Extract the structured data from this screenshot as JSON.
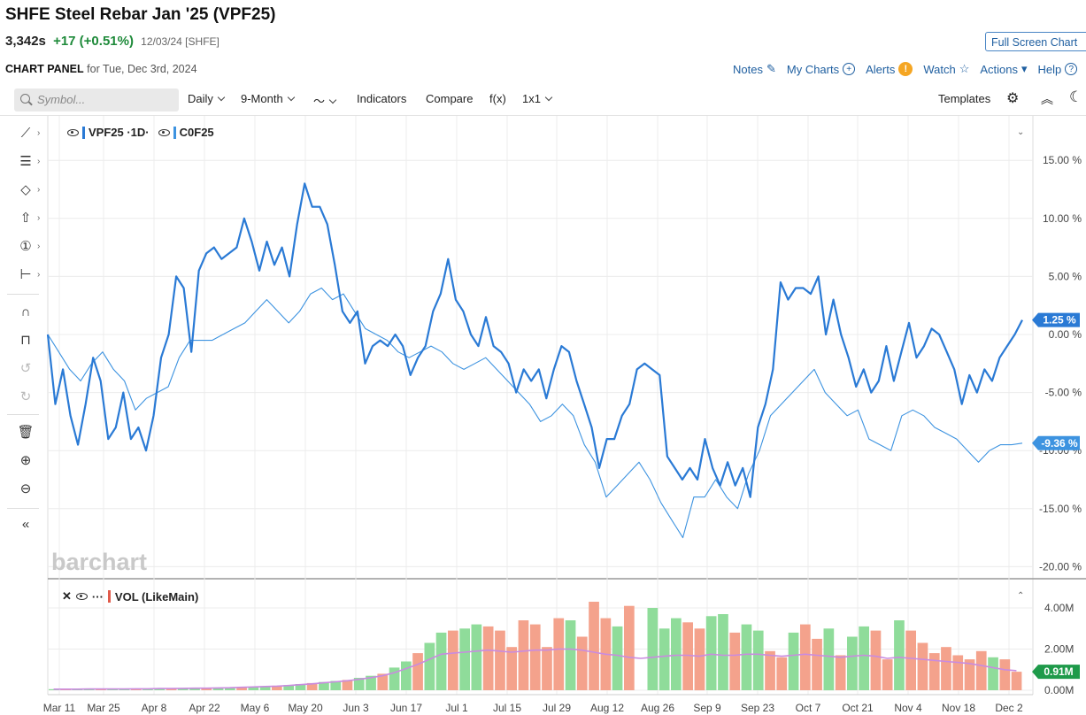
{
  "header": {
    "title": "SHFE Steel Rebar Jan '25 (VPF25)",
    "last": "3,342s",
    "change": "+17 (+0.51%)",
    "meta": "12/03/24 [SHFE]",
    "fullscreen_label": "Full Screen Chart",
    "panel_label": "CHART PANEL",
    "panel_date": "for Tue, Dec 3rd, 2024"
  },
  "links": {
    "notes": "Notes",
    "mycharts": "My Charts",
    "alerts": "Alerts",
    "watch": "Watch",
    "actions": "Actions",
    "help": "Help"
  },
  "toolbar": {
    "symbol_placeholder": "Symbol...",
    "interval": "Daily",
    "period": "9-Month",
    "indicators": "Indicators",
    "compare": "Compare",
    "fx": "f(x)",
    "layout": "1x1",
    "templates": "Templates"
  },
  "icons": {
    "search": "search-icon",
    "gear": "gear-icon",
    "collapse": "chevron-up-double-icon",
    "theme": "moon-icon",
    "draw": [
      "line-tool-icon",
      "fib-tool-icon",
      "shape-tool-icon",
      "arrow-tool-icon",
      "annotation-tool-icon",
      "measure-tool-icon",
      "magnet-icon",
      "lock-icon",
      "undo-icon",
      "redo-icon",
      "trash-icon",
      "zoom-in-icon",
      "zoom-out-icon",
      "collapse-sidebar-icon"
    ]
  },
  "colors": {
    "main": "#2a7ad5",
    "compare": "#3d93e0",
    "up": "#8fdc9a",
    "down": "#f4a28c",
    "ma": "#c98be0",
    "accent": "#1f5fa0"
  },
  "watermark": "barchart",
  "chart_data": [
    {
      "type": "line",
      "legend": {
        "main": "VPF25 ·1D·",
        "compare": "C0F25"
      },
      "ylim": [
        -20,
        16
      ],
      "y_ticks": [
        "15.00 %",
        "10.00 %",
        "5.00 %",
        "0.00 %",
        "-5.00 %",
        "-10.00 %",
        "-15.00 %",
        "-20.00 %"
      ],
      "x_ticks": [
        "Mar 11",
        "Mar 25",
        "Apr 8",
        "Apr 22",
        "May 6",
        "May 20",
        "Jun 3",
        "Jun 17",
        "Jul 1",
        "Jul 15",
        "Jul 29",
        "Aug 12",
        "Aug 26",
        "Sep 9",
        "Sep 23",
        "Oct 7",
        "Oct 21",
        "Nov 4",
        "Nov 18",
        "Dec 2"
      ],
      "last_labels": {
        "main": "1.25 %",
        "compare": "-9.36 %"
      },
      "series": [
        {
          "name": "VPF25",
          "values": [
            0,
            -6,
            -3,
            -7,
            -9.5,
            -6,
            -2,
            -4,
            -9,
            -8,
            -5,
            -9,
            -8,
            -10,
            -7,
            -2,
            0,
            5,
            4,
            -1.5,
            5.5,
            7,
            7.5,
            6.5,
            7,
            7.5,
            10,
            8,
            5.5,
            8,
            6,
            7.5,
            5,
            9.5,
            13,
            11,
            11,
            9.5,
            6,
            2,
            1,
            2,
            -2.5,
            -1,
            -0.5,
            -1,
            0,
            -1,
            -3.5,
            -2,
            -1,
            2,
            3.5,
            6.5,
            3,
            2,
            0,
            -1,
            1.5,
            -1,
            -1.5,
            -2.5,
            -5,
            -3,
            -4,
            -3,
            -5.5,
            -3,
            -1,
            -1.5,
            -4,
            -6,
            -8,
            -11.5,
            -9,
            -9,
            -7,
            -6,
            -3,
            -2.5,
            -3,
            -3.5,
            -10.5,
            -11.5,
            -12.5,
            -11.5,
            -12.5,
            -9,
            -11.5,
            -13,
            -11,
            -13,
            -11.5,
            -14,
            -8,
            -6,
            -3,
            4.5,
            3,
            4,
            4,
            3.5,
            5,
            0,
            3,
            0,
            -2,
            -4.5,
            -3,
            -5,
            -4,
            -1,
            -4,
            -1.5,
            1,
            -2,
            -1,
            0.5,
            0,
            -1.5,
            -3,
            -6,
            -3.5,
            -5,
            -3,
            -4,
            -2,
            -1,
            0,
            1.25
          ]
        },
        {
          "name": "C0F25",
          "values": [
            0,
            -1.5,
            -3,
            -4,
            -2.5,
            -1.5,
            -3,
            -4,
            -6.5,
            -5.5,
            -5,
            -4.5,
            -2,
            -0.5,
            -0.5,
            -0.5,
            0,
            0.5,
            1,
            2,
            3,
            2,
            1,
            2,
            3.5,
            4,
            3,
            3.5,
            2,
            0.5,
            0,
            -0.5,
            -1.5,
            -2,
            -1.5,
            -1,
            -1.5,
            -2.5,
            -3,
            -2.5,
            -2,
            -3,
            -4,
            -5,
            -6,
            -7.5,
            -7,
            -6,
            -7,
            -9.5,
            -11,
            -14,
            -13,
            -12,
            -11,
            -12.5,
            -14.5,
            -16,
            -17.5,
            -14,
            -14,
            -12.5,
            -14,
            -15,
            -12,
            -10,
            -7,
            -6,
            -5,
            -4,
            -3,
            -5,
            -6,
            -7,
            -6.5,
            -9,
            -9.5,
            -10,
            -7,
            -6.5,
            -7,
            -8,
            -8.5,
            -9,
            -10,
            -11,
            -10,
            -9.5,
            -9.5,
            -9.36
          ]
        }
      ]
    },
    {
      "type": "bar",
      "legend": "VOL (LikeMain)",
      "ylim": [
        0,
        4.6
      ],
      "y_ticks": [
        "4.00M",
        "2.00M",
        "0.00M"
      ],
      "last_label": "0.91M",
      "values": [
        0.05,
        0.05,
        0.05,
        0.05,
        0.06,
        0.06,
        0.06,
        0.07,
        0.07,
        0.08,
        0.08,
        0.09,
        0.1,
        0.1,
        0.12,
        0.13,
        0.15,
        0.17,
        0.2,
        0.22,
        0.25,
        0.3,
        0.35,
        0.4,
        0.45,
        0.5,
        0.6,
        0.7,
        0.8,
        1.1,
        1.4,
        1.8,
        2.3,
        2.8,
        2.9,
        3.0,
        3.2,
        3.1,
        2.9,
        2.1,
        3.4,
        3.2,
        2.1,
        3.5,
        3.4,
        2.6,
        4.3,
        3.5,
        3.1,
        4.1,
        0,
        4.0,
        3.0,
        3.5,
        3.3,
        3.0,
        3.6,
        3.7,
        2.8,
        3.2,
        2.9,
        1.9,
        1.6,
        2.8,
        3.2,
        2.5,
        3.0,
        1.7,
        2.6,
        3.1,
        2.9,
        1.5,
        3.4,
        2.9,
        2.3,
        1.8,
        2.1,
        1.7,
        1.5,
        1.9,
        1.6,
        1.5,
        0.9
      ],
      "ma_values": [
        0.05,
        0.05,
        0.05,
        0.06,
        0.06,
        0.06,
        0.06,
        0.07,
        0.07,
        0.08,
        0.08,
        0.09,
        0.1,
        0.1,
        0.11,
        0.12,
        0.14,
        0.16,
        0.18,
        0.2,
        0.23,
        0.27,
        0.31,
        0.36,
        0.41,
        0.46,
        0.53,
        0.61,
        0.7,
        0.85,
        1.05,
        1.25,
        1.5,
        1.75,
        1.8,
        1.85,
        1.9,
        1.95,
        1.9,
        1.85,
        1.9,
        1.95,
        1.95,
        2.0,
        2.0,
        1.95,
        1.85,
        1.75,
        1.7,
        1.6,
        1.55,
        1.6,
        1.65,
        1.7,
        1.7,
        1.65,
        1.75,
        1.7,
        1.7,
        1.75,
        1.75,
        1.7,
        1.65,
        1.7,
        1.75,
        1.7,
        1.65,
        1.6,
        1.65,
        1.7,
        1.65,
        1.55,
        1.6,
        1.55,
        1.5,
        1.45,
        1.4,
        1.35,
        1.3,
        1.2,
        1.1,
        1.0,
        0.95
      ]
    }
  ]
}
